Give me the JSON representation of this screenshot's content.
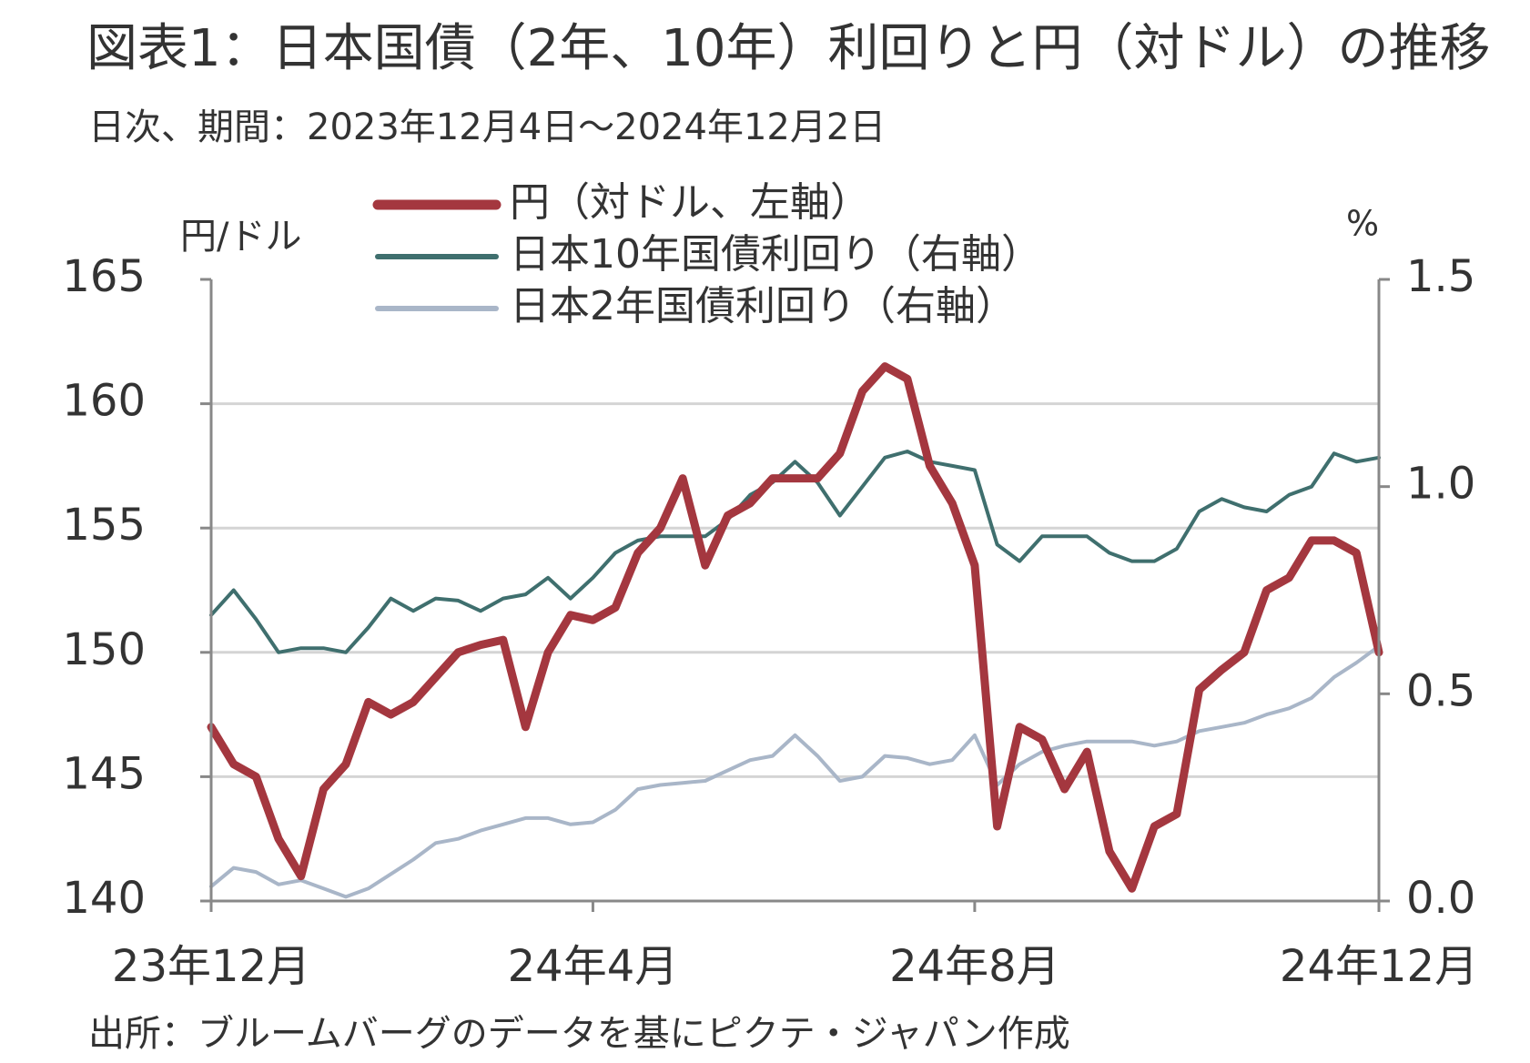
{
  "chart_data": {
    "type": "line",
    "title": "図表1：日本国債（2年、10年）利回りと円（対ドル）の推移",
    "subtitle": "日次、期間：2023年12月4日～2024年12月2日",
    "source": "出所：ブルームバーグのデータを基にピクテ・ジャパン作成",
    "y_axis_label": "円/ドル",
    "y2_axis_label": "%",
    "categories": [
      "23年12月",
      null,
      null,
      null,
      null,
      null,
      null,
      null,
      null,
      null,
      null,
      null,
      null,
      null,
      null,
      null,
      null,
      "24年4月",
      null,
      null,
      null,
      null,
      null,
      null,
      null,
      null,
      null,
      null,
      null,
      null,
      null,
      null,
      null,
      null,
      "24年8月",
      null,
      null,
      null,
      null,
      null,
      null,
      null,
      null,
      null,
      null,
      null,
      null,
      null,
      null,
      null,
      null,
      null,
      "24年12月"
    ],
    "series": [
      {
        "name": "円（対ドル、左軸）",
        "color": "#a4373f",
        "width": 9,
        "values": [
          147,
          145.5,
          145,
          142.5,
          141,
          144.5,
          145.5,
          148,
          147.5,
          148,
          149,
          150,
          150.3,
          150.5,
          147,
          150,
          151.5,
          151.3,
          151.8,
          154,
          155,
          157,
          153.5,
          155.5,
          156,
          157,
          157,
          157,
          158,
          160.5,
          161.5,
          161,
          157.5,
          156,
          153.5,
          143,
          147,
          146.5,
          144.5,
          146,
          142,
          140.5,
          143,
          143.5,
          148.5,
          149.3,
          150,
          152.5,
          153,
          154.5,
          154.5,
          154,
          150
        ]
      },
      {
        "name": "日本10年国債利回り（右軸）",
        "color": "#3f6f6e",
        "width": 4,
        "axis": "y2",
        "values": [
          0.69,
          0.75,
          0.68,
          0.6,
          0.61,
          0.61,
          0.6,
          0.66,
          0.73,
          0.7,
          0.73,
          0.725,
          0.7,
          0.73,
          0.74,
          0.78,
          0.73,
          0.78,
          0.84,
          0.87,
          0.88,
          0.88,
          0.88,
          0.92,
          0.98,
          1.01,
          1.06,
          1.01,
          0.93,
          1.0,
          1.07,
          1.085,
          1.06,
          1.05,
          1.04,
          0.86,
          0.82,
          0.88,
          0.88,
          0.88,
          0.84,
          0.82,
          0.82,
          0.85,
          0.94,
          0.97,
          0.95,
          0.94,
          0.98,
          1.0,
          1.08,
          1.06,
          1.07
        ]
      },
      {
        "name": "日本2年国債利回り（右軸）",
        "color": "#a9b6c8",
        "width": 4,
        "axis": "y2",
        "values": [
          0.035,
          0.08,
          0.07,
          0.04,
          0.05,
          0.03,
          0.01,
          0.03,
          0.065,
          0.1,
          0.14,
          0.15,
          0.17,
          0.185,
          0.2,
          0.2,
          0.185,
          0.19,
          0.22,
          0.27,
          0.28,
          0.285,
          0.29,
          0.315,
          0.34,
          0.35,
          0.4,
          0.35,
          0.29,
          0.3,
          0.35,
          0.345,
          0.33,
          0.34,
          0.4,
          0.28,
          0.33,
          0.36,
          0.375,
          0.385,
          0.385,
          0.385,
          0.375,
          0.385,
          0.41,
          0.42,
          0.43,
          0.45,
          0.465,
          0.49,
          0.54,
          0.575,
          0.615
        ]
      }
    ],
    "ylim": [
      140,
      165
    ],
    "yticks": [
      140,
      145,
      150,
      155,
      160,
      165
    ],
    "y2lim": [
      0,
      1.5
    ],
    "y2ticks": [
      {
        "value": 0,
        "label": "0.0"
      },
      0.5,
      {
        "value": 1,
        "label": "1.0"
      },
      1.5
    ],
    "grid": true,
    "legend": "top"
  }
}
